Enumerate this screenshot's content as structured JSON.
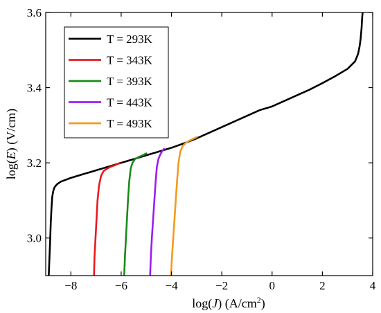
{
  "chart_data": {
    "type": "line",
    "title": "",
    "xlabel": {
      "prefix": "log(",
      "var": "J",
      "suffix": ")  (A/cm",
      "sup": "2",
      "close": ")"
    },
    "ylabel": {
      "prefix": "log(",
      "var": "E",
      "suffix": ")  (V/cm)"
    },
    "xlim": [
      -9.0,
      4.0
    ],
    "ylim": [
      2.9,
      3.6
    ],
    "xticks": [
      -8,
      -6,
      -4,
      -2,
      0,
      2,
      4
    ],
    "xtick_labels": [
      "−8",
      "−6",
      "−4",
      "−2",
      "0",
      "2",
      "4"
    ],
    "yticks": [
      3.0,
      3.2,
      3.4,
      3.6
    ],
    "ytick_labels": [
      "3.0",
      "3.2",
      "3.4",
      "3.6"
    ],
    "grid": false,
    "legend_position": "top-left",
    "series": [
      {
        "name": "T = 293K",
        "color": "#000000",
        "x": [
          -8.88,
          -8.85,
          -8.82,
          -8.8,
          -8.77,
          -8.74,
          -8.7,
          -8.65,
          -8.55,
          -8.4,
          -8.0,
          -7.5,
          -7.0,
          -6.5,
          -6.0,
          -5.5,
          -5.0,
          -4.5,
          -4.0,
          -3.5,
          -3.0,
          -2.5,
          -2.0,
          -1.5,
          -1.0,
          -0.5,
          0.0,
          0.5,
          1.0,
          1.5,
          2.0,
          2.5,
          3.0,
          3.3,
          3.42,
          3.48,
          3.52,
          3.56,
          3.58,
          3.6
        ],
        "y": [
          2.9,
          2.95,
          3.0,
          3.04,
          3.08,
          3.11,
          3.125,
          3.135,
          3.143,
          3.15,
          3.16,
          3.17,
          3.18,
          3.19,
          3.2,
          3.21,
          3.22,
          3.23,
          3.24,
          3.252,
          3.265,
          3.28,
          3.295,
          3.31,
          3.325,
          3.34,
          3.35,
          3.365,
          3.38,
          3.395,
          3.412,
          3.43,
          3.45,
          3.47,
          3.49,
          3.51,
          3.53,
          3.56,
          3.585,
          3.6
        ]
      },
      {
        "name": "T = 343K",
        "color": "#e8191f",
        "x": [
          -7.08,
          -7.06,
          -7.02,
          -6.98,
          -6.94,
          -6.88,
          -6.8,
          -6.7,
          -6.55,
          -6.4,
          -6.2,
          -6.05
        ],
        "y": [
          2.9,
          2.95,
          3.0,
          3.05,
          3.1,
          3.14,
          3.165,
          3.178,
          3.185,
          3.19,
          3.195,
          3.2
        ]
      },
      {
        "name": "T = 393K",
        "color": "#1a8a1a",
        "x": [
          -5.88,
          -5.85,
          -5.81,
          -5.77,
          -5.73,
          -5.68,
          -5.62,
          -5.55,
          -5.45,
          -5.32,
          -5.15,
          -5.0
        ],
        "y": [
          2.9,
          2.95,
          3.0,
          3.05,
          3.1,
          3.15,
          3.185,
          3.2,
          3.21,
          3.215,
          3.22,
          3.225
        ]
      },
      {
        "name": "T = 443K",
        "color": "#9b1ef0",
        "x": [
          -4.85,
          -4.82,
          -4.78,
          -4.73,
          -4.68,
          -4.63,
          -4.58,
          -4.52,
          -4.46,
          -4.38,
          -4.3
        ],
        "y": [
          2.9,
          2.95,
          3.0,
          3.05,
          3.1,
          3.15,
          3.19,
          3.21,
          3.22,
          3.23,
          3.237
        ]
      },
      {
        "name": "T = 493K",
        "color": "#f39a1e",
        "x": [
          -4.02,
          -3.98,
          -3.93,
          -3.88,
          -3.83,
          -3.78,
          -3.72,
          -3.65,
          -3.55,
          -3.4,
          -3.2,
          -3.0
        ],
        "y": [
          2.9,
          2.95,
          3.0,
          3.05,
          3.1,
          3.15,
          3.2,
          3.23,
          3.245,
          3.255,
          3.262,
          3.268
        ]
      }
    ]
  }
}
